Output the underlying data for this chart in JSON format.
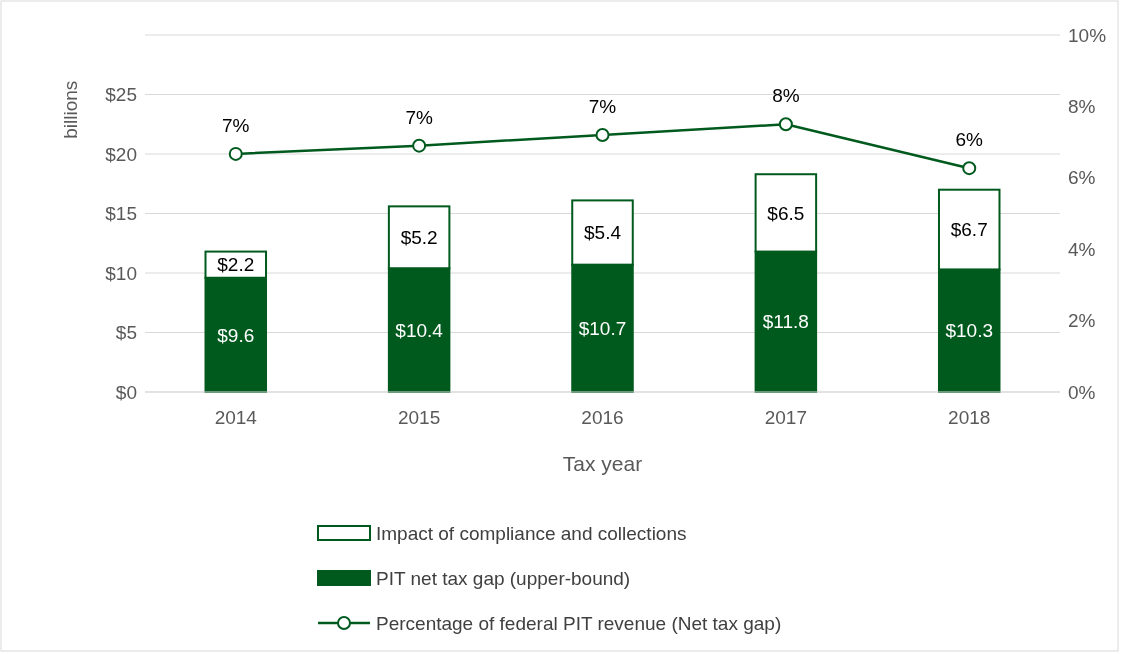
{
  "chart_data": {
    "type": "bar",
    "stacked": true,
    "xlabel": "Tax year",
    "ylabel": "billions",
    "categories": [
      "2014",
      "2015",
      "2016",
      "2017",
      "2018"
    ],
    "series": [
      {
        "name": "PIT net tax gap (upper-bound)",
        "color": "#005a1e",
        "values": [
          9.6,
          10.4,
          10.7,
          11.8,
          10.3
        ],
        "value_labels": [
          "$9.6",
          "$10.4",
          "$10.7",
          "$11.8",
          "$10.3"
        ]
      },
      {
        "name": "Impact of compliance and collections",
        "color": "#ffffff",
        "values": [
          2.2,
          5.2,
          5.4,
          6.5,
          6.7
        ],
        "value_labels": [
          "$2.2",
          "$5.2",
          "$5.4",
          "$6.5",
          "$6.7"
        ]
      },
      {
        "name": "Percentage of federal PIT revenue (Net tax gap)",
        "type": "line",
        "axis": "y2",
        "color": "#005a1e",
        "marker": "circle",
        "values": [
          6.67,
          6.9,
          7.2,
          7.5,
          6.27
        ],
        "value_labels": [
          "7%",
          "7%",
          "7%",
          "8%",
          "6%"
        ]
      }
    ],
    "ylim": [
      0,
      30
    ],
    "yticks": [
      {
        "value": 0,
        "label": "$0"
      },
      {
        "value": 5,
        "label": "$5"
      },
      {
        "value": 10,
        "label": "$10"
      },
      {
        "value": 15,
        "label": "$15"
      },
      {
        "value": 20,
        "label": "$20"
      },
      {
        "value": 25,
        "label": "$25"
      }
    ],
    "y2lim": [
      0,
      10
    ],
    "y2ticks": [
      {
        "value": 0,
        "label": "0%"
      },
      {
        "value": 2,
        "label": "2%"
      },
      {
        "value": 4,
        "label": "4%"
      },
      {
        "value": 6,
        "label": "6%"
      },
      {
        "value": 8,
        "label": "8%"
      },
      {
        "value": 10,
        "label": "10%"
      }
    ],
    "grid": "y",
    "legend": "bottom"
  }
}
